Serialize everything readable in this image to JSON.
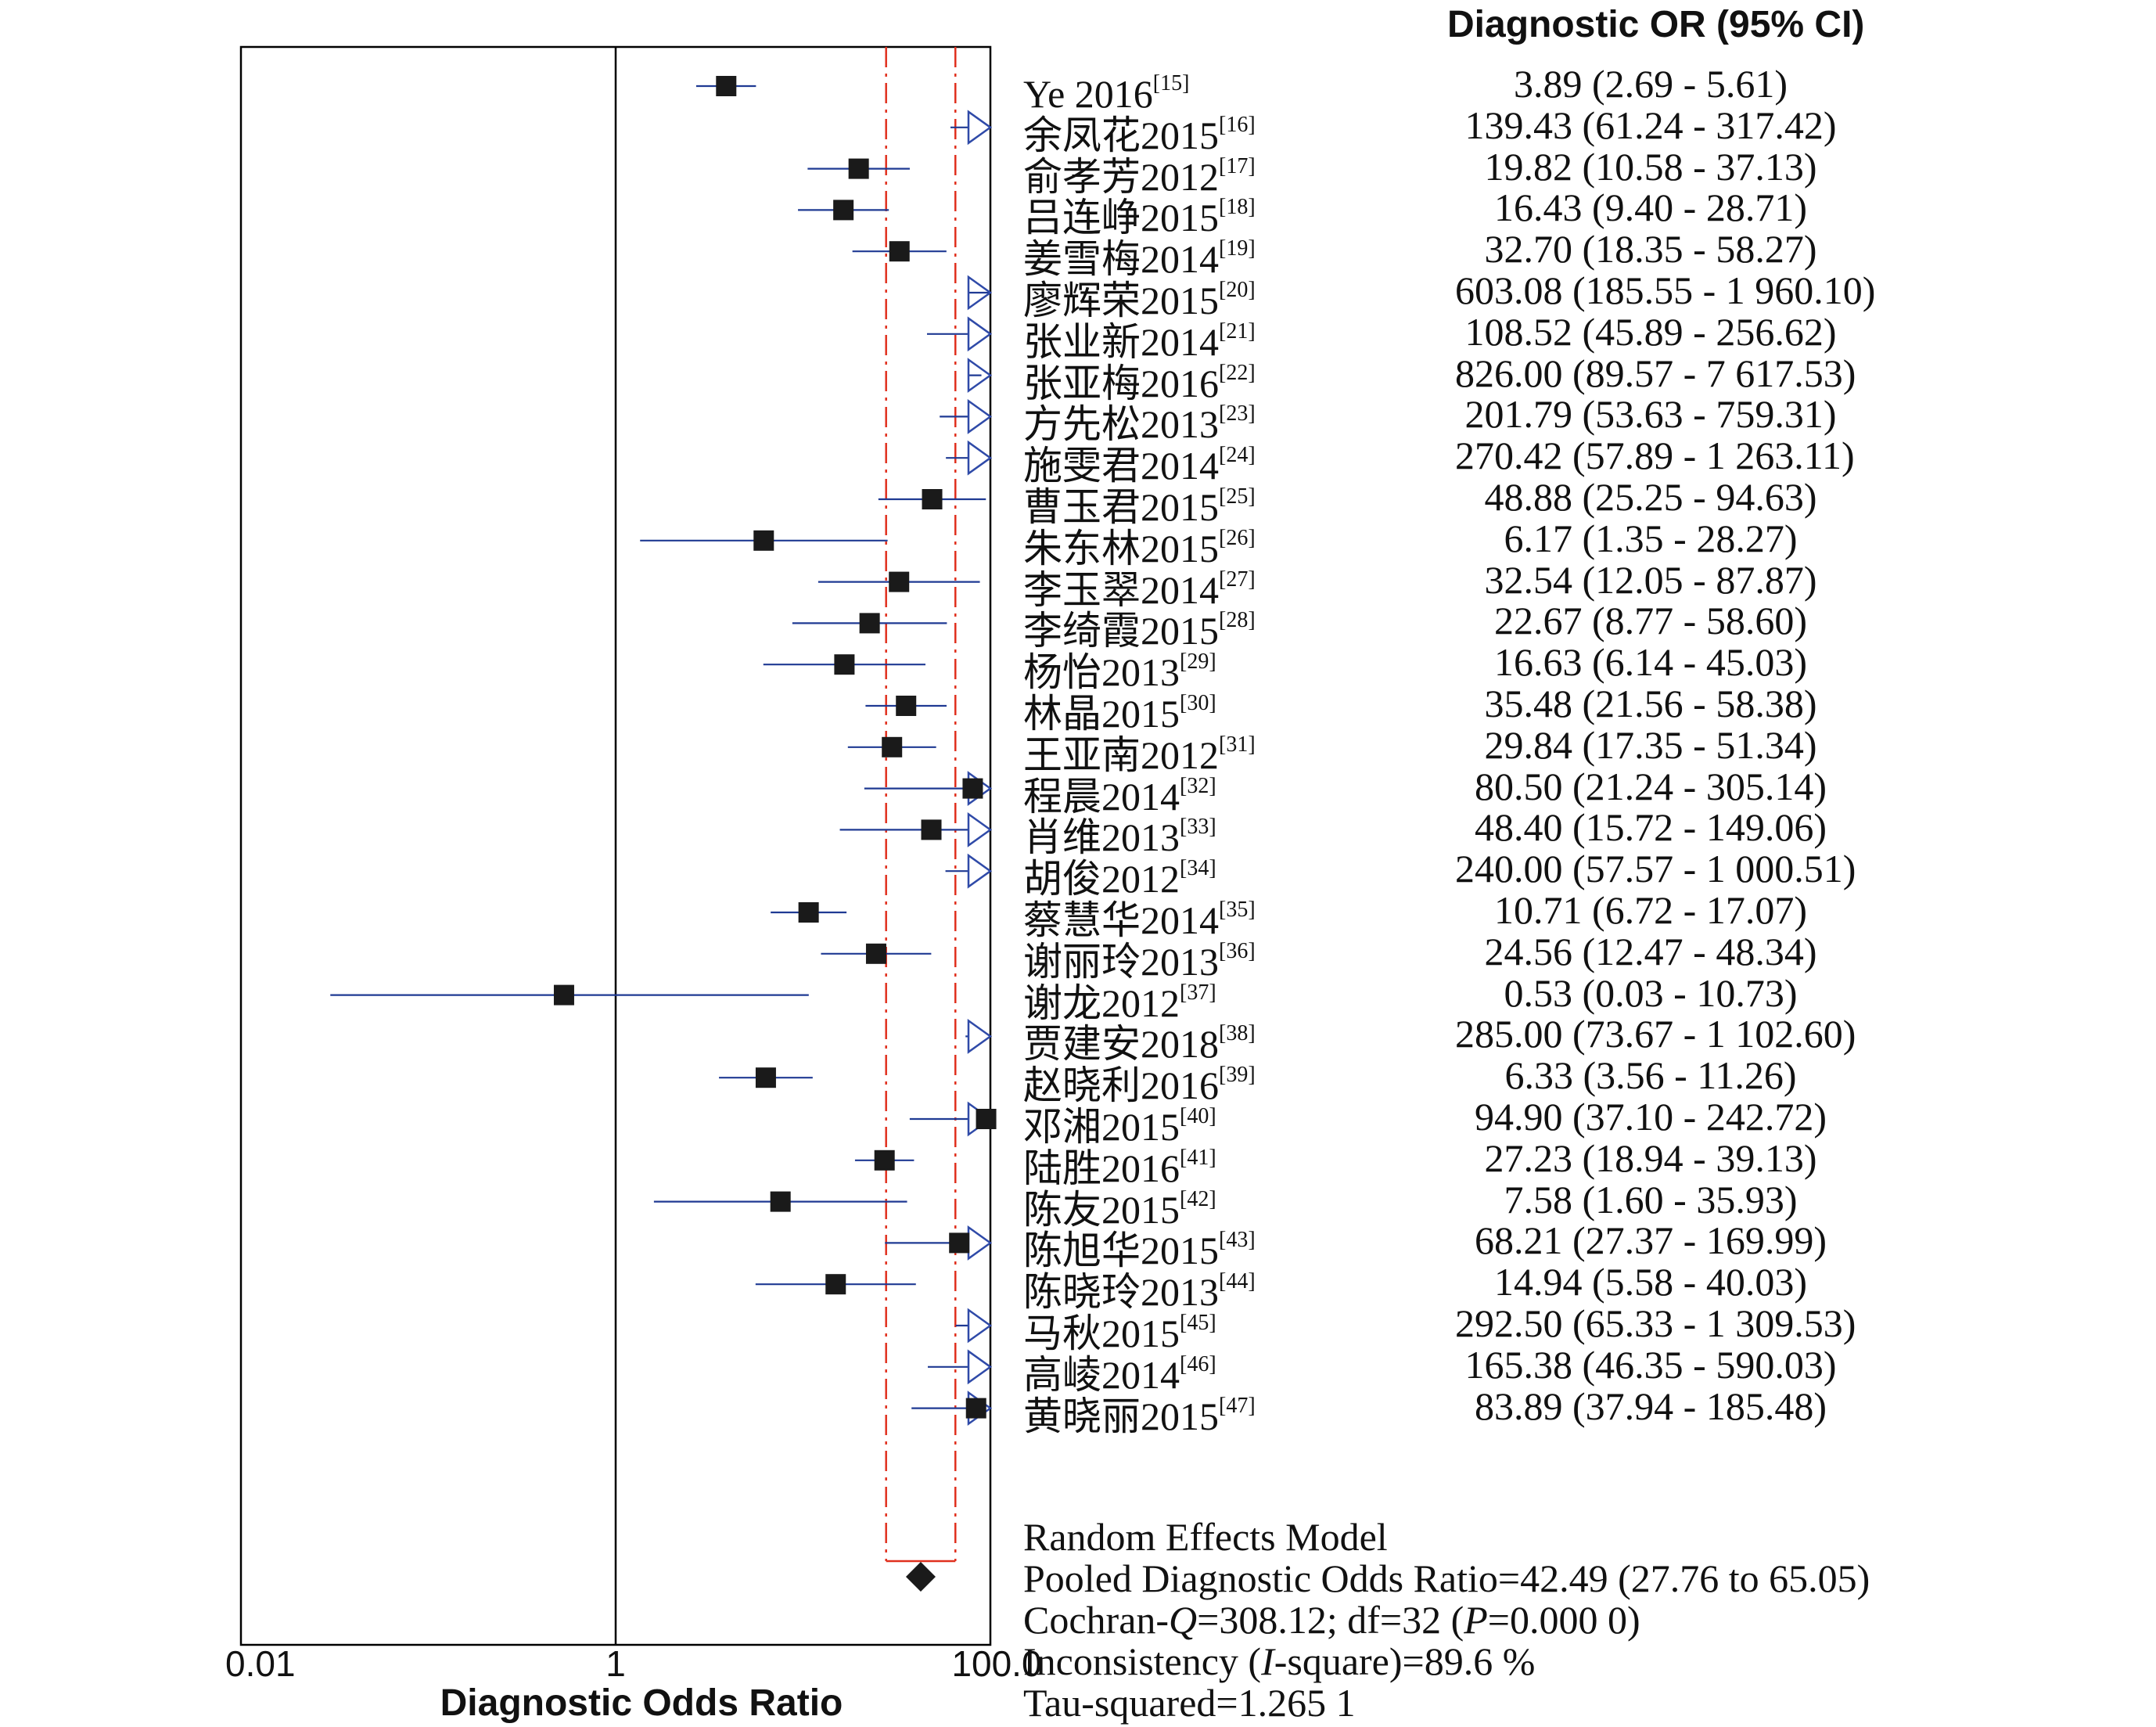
{
  "chart_data": {
    "type": "forest",
    "xscale": "log",
    "xlim": [
      0.01,
      100.0
    ],
    "xticks": [
      "0.01",
      "1",
      "100.0"
    ],
    "xlabel": "Diagnostic Odds Ratio",
    "column_header": "Diagnostic OR (95% CI)",
    "pooled_ci_lines": [
      27.76,
      65.05
    ],
    "studies": [
      {
        "name": "Ye 2016",
        "ref": "[15]",
        "or": 3.89,
        "lo": 2.69,
        "hi": 5.61,
        "text": "3.89 (2.69 - 5.61)"
      },
      {
        "name": "余凤花2015",
        "ref": "[16]",
        "or": 139.43,
        "lo": 61.24,
        "hi": 317.42,
        "text": "139.43 (61.24 - 317.42)"
      },
      {
        "name": "俞孝芳2012",
        "ref": "[17]",
        "or": 19.82,
        "lo": 10.58,
        "hi": 37.13,
        "text": "19.82 (10.58 - 37.13)"
      },
      {
        "name": "吕连峥2015",
        "ref": "[18]",
        "or": 16.43,
        "lo": 9.4,
        "hi": 28.71,
        "text": "16.43 (9.40 - 28.71)"
      },
      {
        "name": "姜雪梅2014",
        "ref": "[19]",
        "or": 32.7,
        "lo": 18.35,
        "hi": 58.27,
        "text": "32.70 (18.35 - 58.27)"
      },
      {
        "name": "廖辉荣2015",
        "ref": "[20]",
        "or": 603.08,
        "lo": 185.55,
        "hi": 1960.1,
        "text": "603.08 (185.55 - 1 960.10)"
      },
      {
        "name": "张业新2014",
        "ref": "[21]",
        "or": 108.52,
        "lo": 45.89,
        "hi": 256.62,
        "text": "108.52 (45.89 - 256.62)"
      },
      {
        "name": "张亚梅2016",
        "ref": "[22]",
        "or": 826.0,
        "lo": 89.57,
        "hi": 7617.53,
        "text": "826.00 (89.57 - 7 617.53)"
      },
      {
        "name": "方先松2013",
        "ref": "[23]",
        "or": 201.79,
        "lo": 53.63,
        "hi": 759.31,
        "text": "201.79 (53.63 - 759.31)"
      },
      {
        "name": "施雯君2014",
        "ref": "[24]",
        "or": 270.42,
        "lo": 57.89,
        "hi": 1263.11,
        "text": "270.42 (57.89 - 1 263.11)"
      },
      {
        "name": "曹玉君2015",
        "ref": "[25]",
        "or": 48.88,
        "lo": 25.25,
        "hi": 94.63,
        "text": "48.88 (25.25 - 94.63)"
      },
      {
        "name": "朱东林2015",
        "ref": "[26]",
        "or": 6.17,
        "lo": 1.35,
        "hi": 28.27,
        "text": "6.17 (1.35 - 28.27)"
      },
      {
        "name": "李玉翠2014",
        "ref": "[27]",
        "or": 32.54,
        "lo": 12.05,
        "hi": 87.87,
        "text": "32.54 (12.05 - 87.87)"
      },
      {
        "name": "李绮霞2015",
        "ref": "[28]",
        "or": 22.67,
        "lo": 8.77,
        "hi": 58.6,
        "text": "22.67 (8.77 - 58.60)"
      },
      {
        "name": "杨怡2013",
        "ref": "[29]",
        "or": 16.63,
        "lo": 6.14,
        "hi": 45.03,
        "text": "16.63 (6.14 - 45.03)"
      },
      {
        "name": "林晶2015",
        "ref": "[30]",
        "or": 35.48,
        "lo": 21.56,
        "hi": 58.38,
        "text": "35.48 (21.56 - 58.38)"
      },
      {
        "name": "王亚南2012",
        "ref": "[31]",
        "or": 29.84,
        "lo": 17.35,
        "hi": 51.34,
        "text": "29.84 (17.35 - 51.34)"
      },
      {
        "name": "程晨2014",
        "ref": "[32]",
        "or": 80.5,
        "lo": 21.24,
        "hi": 305.14,
        "text": "80.50 (21.24 - 305.14)"
      },
      {
        "name": "肖维2013",
        "ref": "[33]",
        "or": 48.4,
        "lo": 15.72,
        "hi": 149.06,
        "text": "48.40 (15.72 - 149.06)"
      },
      {
        "name": "胡俊2012",
        "ref": "[34]",
        "or": 240.0,
        "lo": 57.57,
        "hi": 1000.51,
        "text": "240.00 (57.57 - 1 000.51)"
      },
      {
        "name": "蔡慧华2014",
        "ref": "[35]",
        "or": 10.71,
        "lo": 6.72,
        "hi": 17.07,
        "text": "10.71 (6.72 - 17.07)"
      },
      {
        "name": "谢丽玲2013",
        "ref": "[36]",
        "or": 24.56,
        "lo": 12.47,
        "hi": 48.34,
        "text": "24.56 (12.47 - 48.34)"
      },
      {
        "name": "谢龙2012",
        "ref": "[37]",
        "or": 0.53,
        "lo": 0.03,
        "hi": 10.73,
        "text": "0.53 (0.03 - 10.73)"
      },
      {
        "name": "贾建安2018",
        "ref": "[38]",
        "or": 285.0,
        "lo": 73.67,
        "hi": 1102.6,
        "text": "285.00 (73.67 - 1 102.60)"
      },
      {
        "name": "赵晓利2016",
        "ref": "[39]",
        "or": 6.33,
        "lo": 3.56,
        "hi": 11.26,
        "text": "6.33 (3.56 - 11.26)"
      },
      {
        "name": "邓湘2015",
        "ref": "[40]",
        "or": 94.9,
        "lo": 37.1,
        "hi": 242.72,
        "text": "94.90 (37.10 - 242.72)"
      },
      {
        "name": "陆胜2016",
        "ref": "[41]",
        "or": 27.23,
        "lo": 18.94,
        "hi": 39.13,
        "text": "27.23 (18.94 - 39.13)"
      },
      {
        "name": "陈友2015",
        "ref": "[42]",
        "or": 7.58,
        "lo": 1.6,
        "hi": 35.93,
        "text": "7.58 (1.60 - 35.93)"
      },
      {
        "name": "陈旭华2015",
        "ref": "[43]",
        "or": 68.21,
        "lo": 27.37,
        "hi": 169.99,
        "text": "68.21 (27.37 - 169.99)"
      },
      {
        "name": "陈晓玲2013",
        "ref": "[44]",
        "or": 14.94,
        "lo": 5.58,
        "hi": 40.03,
        "text": "14.94 (5.58 - 40.03)"
      },
      {
        "name": "马秋2015",
        "ref": "[45]",
        "or": 292.5,
        "lo": 65.33,
        "hi": 1309.53,
        "text": "292.50 (65.33 - 1 309.53)"
      },
      {
        "name": "高崚2014",
        "ref": "[46]",
        "or": 165.38,
        "lo": 46.35,
        "hi": 590.03,
        "text": "165.38 (46.35 - 590.03)"
      },
      {
        "name": "黄晓丽2015",
        "ref": "[47]",
        "or": 83.89,
        "lo": 37.94,
        "hi": 185.48,
        "text": "83.89 (37.94 - 185.48)"
      }
    ],
    "pooled": {
      "or": 42.49,
      "lo": 27.76,
      "hi": 65.05
    },
    "colors": {
      "ci_line": "#1f3a93",
      "arrow": "#2f4aa8",
      "marker": "#1a1a1a",
      "pooled_lines": "#e0301e",
      "frame": "#000000"
    }
  },
  "summary": {
    "model": "Random Effects Model",
    "pooled": "Pooled Diagnostic Odds Ratio=42.49 (27.76 to 65.05)",
    "q_pre": "Cochran-",
    "q_var": "Q",
    "q_mid": "=308.12; df=32 (",
    "q_p": "P",
    "q_post": "=0.000 0)",
    "i_pre": "Inconsistency (",
    "i_var": "I",
    "i_post": "-square)=89.6 %",
    "tau": "Tau-squared=1.265 1"
  }
}
